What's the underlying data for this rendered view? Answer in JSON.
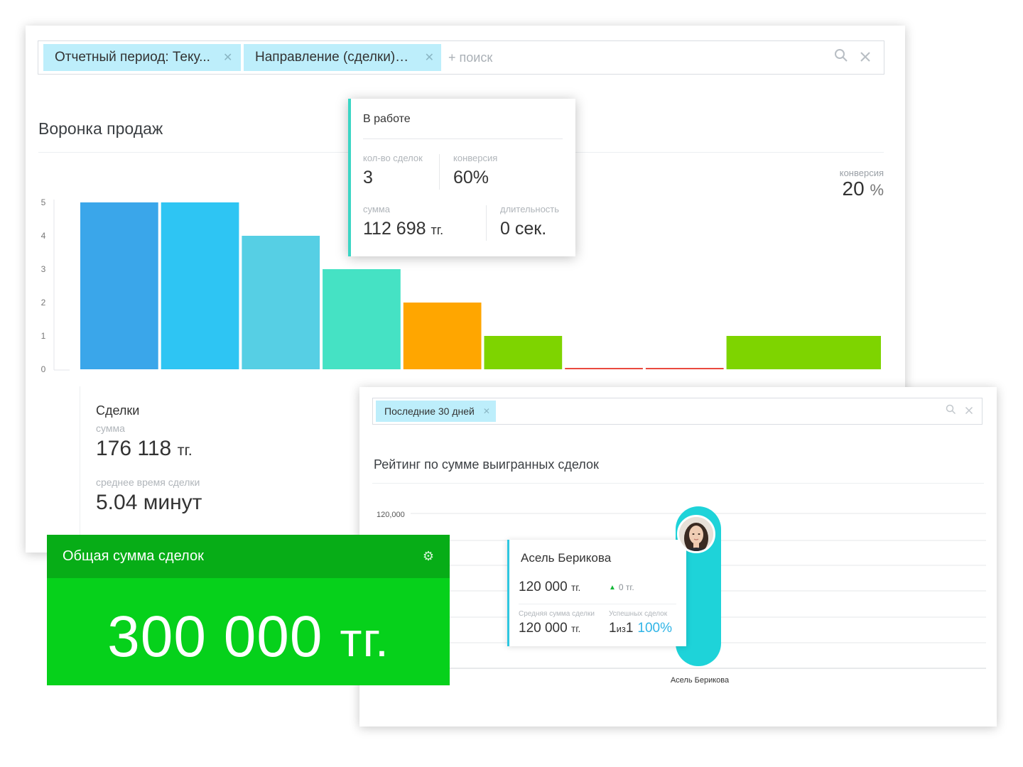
{
  "funnel": {
    "filters": [
      {
        "label": "Отчетный период: Теку..."
      },
      {
        "label": "Направление (сделки): ..."
      }
    ],
    "add_search": "+ поиск",
    "title": "Воронка продаж",
    "conversion_label": "конверсия",
    "conversion_value": "20",
    "conversion_unit": "%",
    "deals": {
      "title": "Сделки",
      "sum_label": "сумма",
      "sum_value": "176 118",
      "currency": "тг.",
      "avg_time_label": "среднее время сделки",
      "avg_time_value": "5.04 минут"
    }
  },
  "tooltip": {
    "title": "В работе",
    "count_label": "кол-во сделок",
    "count_value": "3",
    "conversion_label": "конверсия",
    "conversion_value": "60%",
    "sum_label": "сумма",
    "sum_value": "112 698",
    "currency": "тг.",
    "duration_label": "длительность",
    "duration_value": "0 сек."
  },
  "total": {
    "title": "Общая сумма сделок",
    "value": "300 000",
    "currency": "тг."
  },
  "rating": {
    "filter": "Последние 30 дней",
    "title": "Рейтинг по сумме выигранных сделок",
    "card": {
      "name": "Асель Берикова",
      "amount": "120 000",
      "currency": "тг.",
      "delta": "0 тг.",
      "avg_label": "Средняя сумма сделки",
      "avg_value": "120 000",
      "success_label": "Успешных сделок",
      "success_won": "1",
      "success_of": "из",
      "success_total": "1",
      "success_pct": "100%"
    }
  },
  "icons": {
    "search": "search-icon",
    "clear": "close-icon",
    "gear": "gear-icon",
    "up": "triangle-up-icon"
  },
  "chart_data": [
    {
      "type": "bar",
      "y_ticks": [
        "0",
        "1",
        "2",
        "3",
        "4",
        "5"
      ],
      "ylim": [
        0,
        5
      ],
      "values": [
        5,
        5,
        4,
        3,
        2,
        1,
        0,
        0,
        1
      ],
      "colors": [
        "#3aa6ea",
        "#2ec5f3",
        "#56cfe4",
        "#45e2c4",
        "#ffa600",
        "#7ed400",
        "#e94a3f",
        "#e94a3f",
        "#7ed400"
      ],
      "grid": false
    },
    {
      "type": "bar",
      "y_tick_label": "120,000",
      "ylim": [
        0,
        120000
      ],
      "categories": [
        "Асель Берикова"
      ],
      "values": [
        120000
      ],
      "colors": [
        "#1ed3d9"
      ],
      "grid": true
    }
  ]
}
